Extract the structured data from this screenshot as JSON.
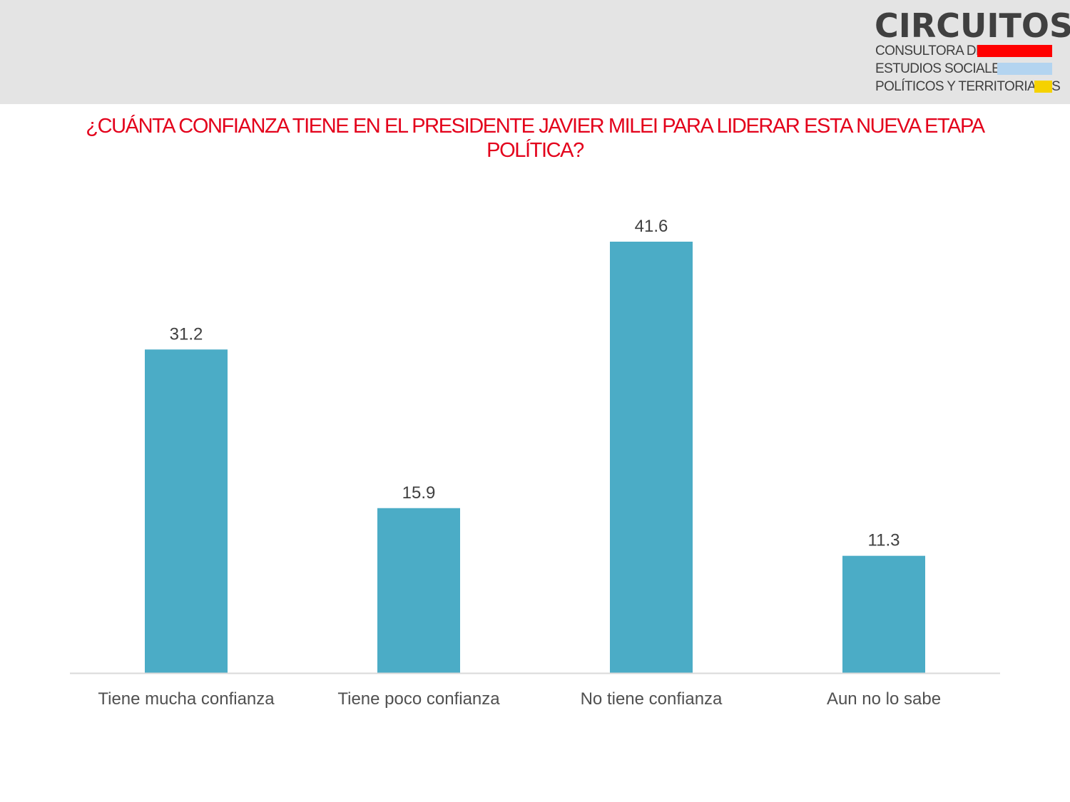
{
  "brand": {
    "name": "CIRCUITOS",
    "tagline_lines": [
      "CONSULTORA DE",
      "ESTUDIOS SOCIALES,",
      "POLÍTICOS Y TERRITORIALES"
    ],
    "stripe_colors": [
      "#ff0000",
      "#b3d4f0",
      "#f5d200"
    ]
  },
  "colors": {
    "title": "#e3001b",
    "bar": "#4bacc6",
    "axis": "#d9d9d9"
  },
  "chart_data": {
    "type": "bar",
    "title": "¿CUÁNTA CONFIANZA TIENE EN EL PRESIDENTE JAVIER MILEI PARA LIDERAR ESTA NUEVA ETAPA POLÍTICA?",
    "categories": [
      "Tiene mucha confianza",
      "Tiene poco confianza",
      "No tiene confianza",
      "Aun no lo sabe"
    ],
    "values": [
      31.2,
      15.9,
      41.6,
      11.3
    ],
    "value_labels": [
      "31.2",
      "15.9",
      "41.6",
      "11.3"
    ],
    "xlabel": "",
    "ylabel": "",
    "ylim": [
      0,
      45
    ],
    "grid": false,
    "legend": "none"
  }
}
